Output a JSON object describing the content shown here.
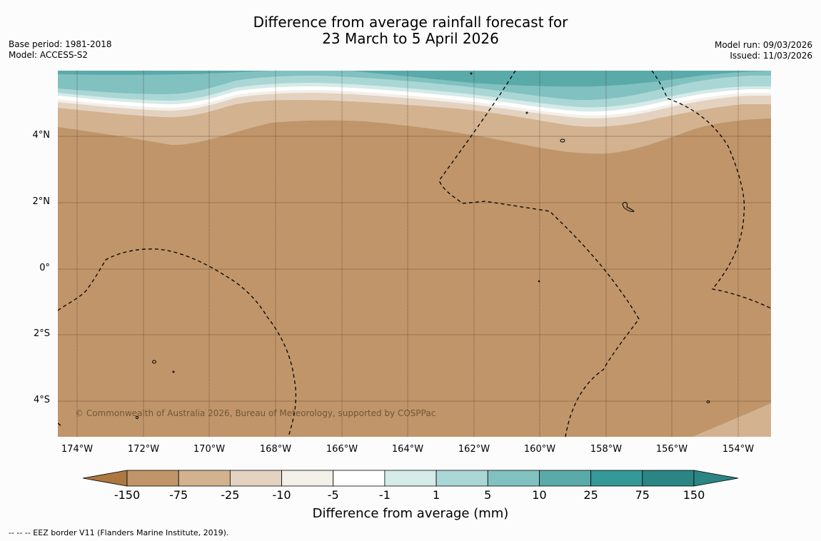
{
  "title": {
    "line1": "Difference from average rainfall forecast for",
    "line2": "23 March to 5 April 2026"
  },
  "meta_left": {
    "base_period": "Base period: 1981-2018",
    "model": "Model: ACCESS-S2"
  },
  "meta_right": {
    "model_run": "Model run: 09/03/2026",
    "issued": "Issued: 11/03/2026"
  },
  "map": {
    "latitude_labels": [
      "4°N",
      "2°N",
      "0°",
      "2°S",
      "4°S"
    ],
    "longitude_labels": [
      "174°W",
      "172°W",
      "170°W",
      "168°W",
      "166°W",
      "164°W",
      "162°W",
      "160°W",
      "158°W",
      "156°W",
      "154°W"
    ],
    "copyright": "© Commonwealth of Australia 2026, Bureau of Meteorology, supported by COSPPac"
  },
  "colorbar": {
    "ticks": [
      "-150",
      "-75",
      "-25",
      "-10",
      "-5",
      "-1",
      "1",
      "5",
      "10",
      "25",
      "75",
      "150"
    ],
    "colors": [
      "#ad7741",
      "#c0956a",
      "#d3b290",
      "#e4d2c1",
      "#f3efe9",
      "#ffffff",
      "#d5ebe8",
      "#aad7d6",
      "#81c1c0",
      "#59aaa9",
      "#349997",
      "#2b8584"
    ],
    "label": "Difference from average (mm)"
  },
  "footnote": "--  --  -- EEZ border V11 (Flanders Marine Institute, 2019)."
}
